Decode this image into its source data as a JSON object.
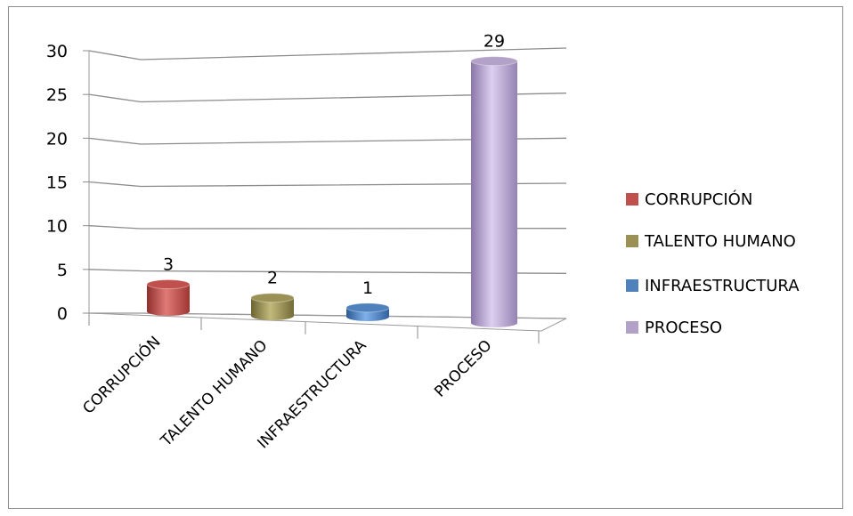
{
  "chart_data": {
    "type": "bar",
    "categories": [
      "CORRUPCIÓN",
      "TALENTO HUMANO",
      "INFRAESTRUCTURA",
      "PROCESO"
    ],
    "values": [
      3,
      2,
      1,
      29
    ],
    "data_labels": [
      "3",
      "2",
      "1",
      "29"
    ],
    "ylim": [
      0,
      30
    ],
    "yticks": [
      "0",
      "5",
      "10",
      "15",
      "20",
      "25",
      "30"
    ],
    "grid": true,
    "legend_position": "right",
    "colors": [
      "#c0504d",
      "#9b9155",
      "#4f81bd",
      "#b3a2c7"
    ],
    "title": "",
    "xlabel": "",
    "ylabel": ""
  }
}
